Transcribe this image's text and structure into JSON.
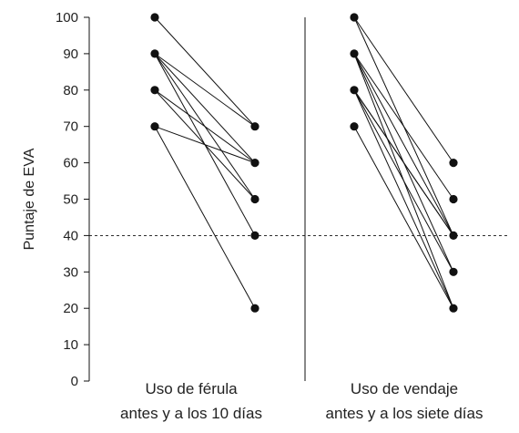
{
  "chart_data": {
    "type": "line",
    "ylabel": "Puntaje de EVA",
    "ylim": [
      0,
      100
    ],
    "y_ticks": [
      0,
      10,
      20,
      30,
      40,
      50,
      60,
      70,
      80,
      90,
      100
    ],
    "reference_line": {
      "value": 40,
      "style": "dashed"
    },
    "groups": [
      {
        "label_line1": "Uso de férula",
        "label_line2": "antes y a los 10 días",
        "pairs": [
          [
            100,
            70
          ],
          [
            90,
            70
          ],
          [
            90,
            60
          ],
          [
            90,
            50
          ],
          [
            90,
            40
          ],
          [
            80,
            60
          ],
          [
            80,
            50
          ],
          [
            70,
            60
          ],
          [
            70,
            20
          ]
        ]
      },
      {
        "label_line1": "Uso de vendaje",
        "label_line2": "antes y a los siete días",
        "pairs": [
          [
            100,
            60
          ],
          [
            100,
            40
          ],
          [
            90,
            50
          ],
          [
            90,
            40
          ],
          [
            90,
            30
          ],
          [
            90,
            20
          ],
          [
            80,
            40
          ],
          [
            80,
            30
          ],
          [
            80,
            20
          ],
          [
            80,
            40
          ],
          [
            70,
            20
          ]
        ]
      }
    ],
    "grid": false,
    "legend": "none"
  }
}
